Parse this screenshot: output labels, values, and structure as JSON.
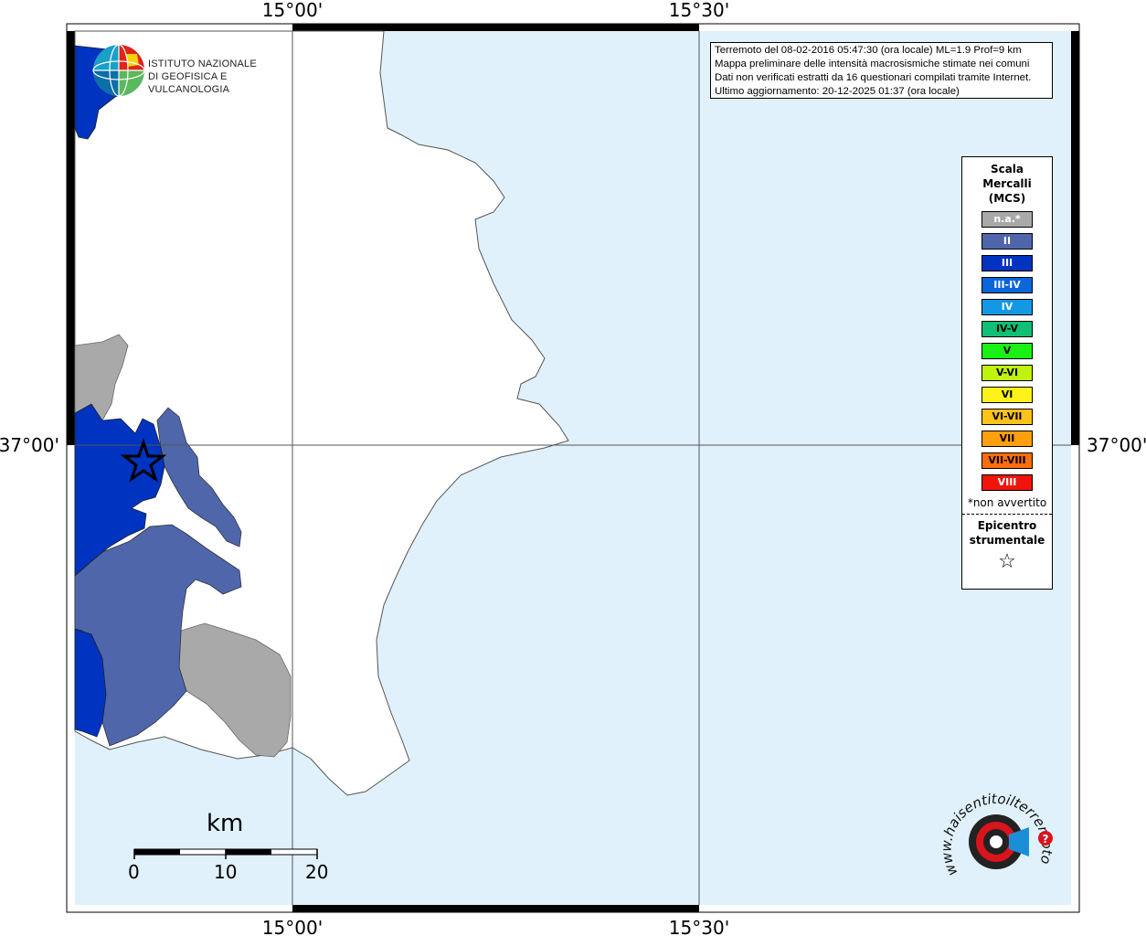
{
  "map": {
    "lon_labels": [
      "15°00'",
      "15°30'"
    ],
    "lat_labels": [
      "37°00'"
    ]
  },
  "info": {
    "line1": "Terremoto del 08-02-2016 05:47:30 (ora locale) ML=1.9 Prof=9 km",
    "line2": "Mappa preliminare delle intensità macrosismiche stimate nei comuni",
    "line3": "Dati non verificati estratti da 16 questionari compilati tramite Internet.",
    "line4": "Ultimo aggiornamento: 20-12-2025 01:37 (ora locale)"
  },
  "legend": {
    "title_1": "Scala",
    "title_2": "Mercalli",
    "title_3": "(MCS)",
    "items": [
      {
        "label": "n.a.*",
        "color": "#a9a9a9"
      },
      {
        "label": "II",
        "color": "#4f66ab"
      },
      {
        "label": "III",
        "color": "#0033bf"
      },
      {
        "label": "III-IV",
        "color": "#0b66d9"
      },
      {
        "label": "IV",
        "color": "#1398e4"
      },
      {
        "label": "IV-V",
        "color": "#0fbf73"
      },
      {
        "label": "V",
        "color": "#19f014"
      },
      {
        "label": "V-VI",
        "color": "#bff20d"
      },
      {
        "label": "VI",
        "color": "#fff21b"
      },
      {
        "label": "VI-VII",
        "color": "#ffc21b"
      },
      {
        "label": "VII",
        "color": "#ff9f0d"
      },
      {
        "label": "VII-VIII",
        "color": "#ff6d0d"
      },
      {
        "label": "VIII",
        "color": "#f0140d"
      }
    ],
    "note": "*non avvertito",
    "epicenter_1": "Epicentro",
    "epicenter_2": "strumentale"
  },
  "logos": {
    "ingv_line1": "ISTITUTO NAZIONALE",
    "ingv_line2": "DI GEOFISICA E VULCANOLOGIA",
    "hsit": "www.haisentitoilterremoto.it"
  },
  "scale_bar": {
    "unit": "km",
    "ticks": [
      "0",
      "10",
      "20"
    ]
  },
  "colors": {
    "sea": "#e0f1fb",
    "land": "#ffffff",
    "coast": "#555555"
  }
}
